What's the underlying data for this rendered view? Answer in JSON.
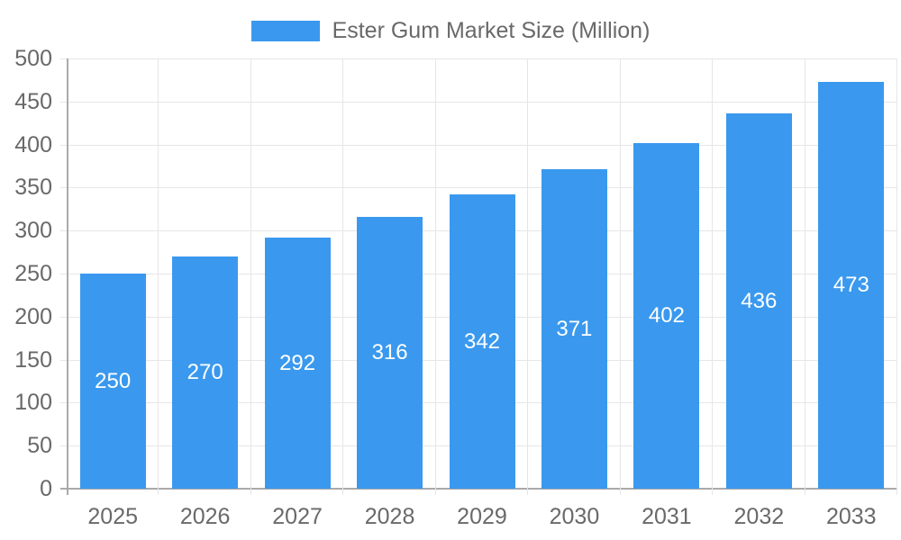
{
  "chart_data": {
    "type": "bar",
    "categories": [
      "2025",
      "2026",
      "2027",
      "2028",
      "2029",
      "2030",
      "2031",
      "2032",
      "2033"
    ],
    "series": [
      {
        "name": "Ester Gum Market Size (Million)",
        "values": [
          250,
          270,
          292,
          316,
          342,
          371,
          402,
          436,
          473
        ]
      }
    ],
    "ylim": [
      0,
      500
    ],
    "ytick_step": 50,
    "grid": true,
    "legend_position": "top",
    "value_labels_position": "inside-center",
    "colors": {
      "bar": "#3A99EE",
      "grid": "#E6E6E6",
      "axis": "#AAAAAA",
      "tick_label": "#696969",
      "legend_text": "#696969",
      "value_label": "#FFFFFF"
    }
  }
}
